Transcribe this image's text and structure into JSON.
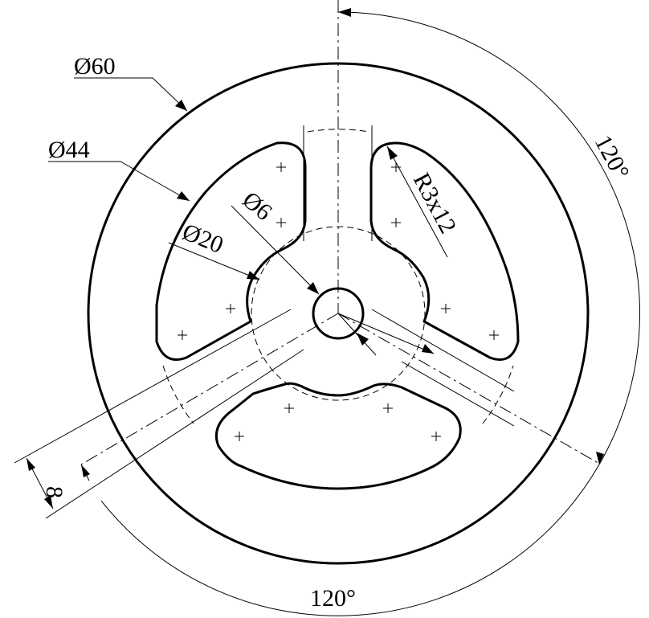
{
  "dimensions": {
    "outer_diameter": "Ø60",
    "spoke_circle_diameter": "Ø44",
    "hub_diameter": "Ø20",
    "bore_diameter": "Ø6",
    "fillet": "R3x12",
    "spoke_width": "8",
    "angle_top_right": "120°",
    "angle_bottom": "120°"
  }
}
